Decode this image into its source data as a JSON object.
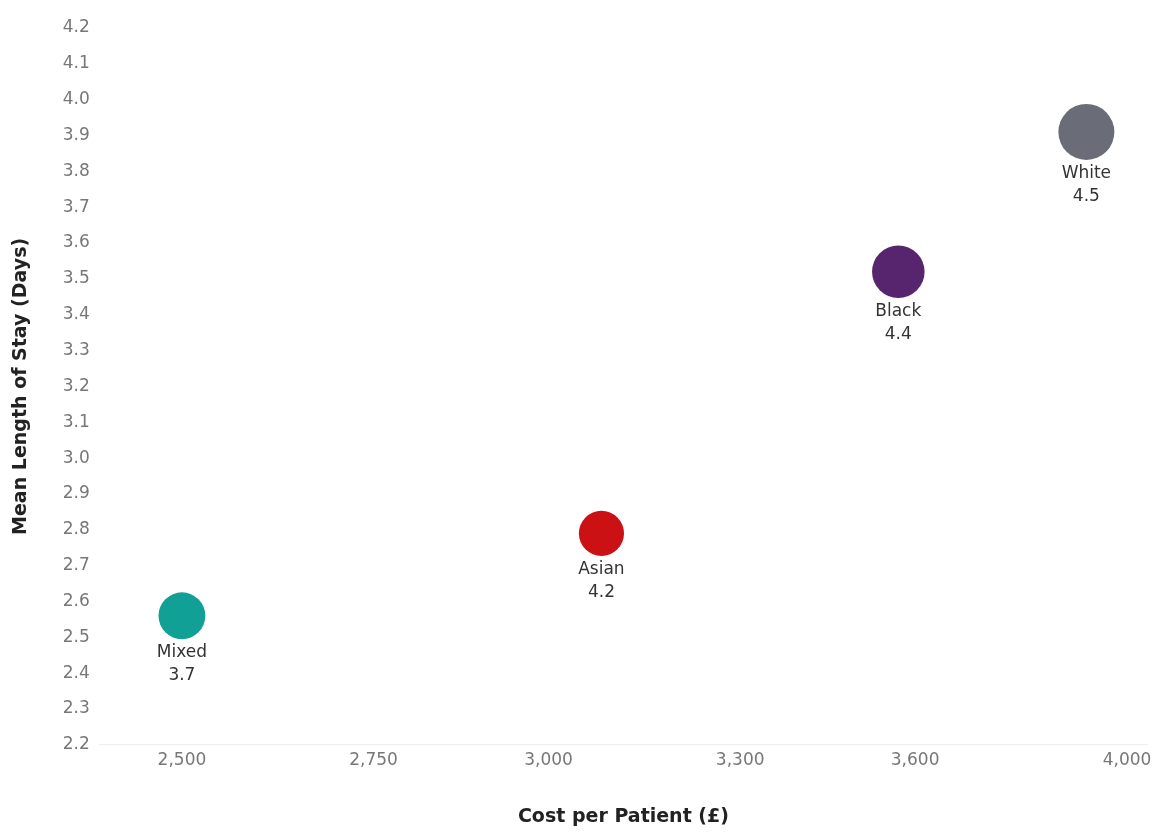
{
  "chart_data": {
    "type": "bubble",
    "xlabel": "Cost per Patient (£)",
    "ylabel": "Mean Length of Stay (Days)",
    "log": "x",
    "xlim": [
      2400,
      4040
    ],
    "xticks": [
      {
        "value": 2500,
        "label": "2,500"
      },
      {
        "value": 2750,
        "label": "2,750"
      },
      {
        "value": 3000,
        "label": "3,000"
      },
      {
        "value": 3300,
        "label": "3,300"
      },
      {
        "value": 3600,
        "label": "3,600"
      },
      {
        "value": 4000,
        "label": "4,000"
      }
    ],
    "ylim": [
      2.2,
      4.2
    ],
    "yticks": [
      2.2,
      2.3,
      2.4,
      2.5,
      2.6,
      2.7,
      2.8,
      2.9,
      {
        "value": 3,
        "label": "3.0"
      },
      3.1,
      3.2,
      3.3,
      3.4,
      3.5,
      3.6,
      3.7,
      3.8,
      3.9,
      {
        "value": 4,
        "label": "4.0"
      },
      4.1,
      4.2
    ],
    "grid": false,
    "legend": false,
    "series": [
      {
        "name": "Mixed",
        "color": "#11a095",
        "x": [
          2500
        ],
        "values": [
          2.56
        ],
        "sizes": [
          0.7
        ]
      },
      {
        "name": "Asian",
        "color": "#cc1115",
        "x": [
          3080
        ],
        "values": [
          2.79
        ],
        "sizes": [
          0.65
        ]
      },
      {
        "name": "Black",
        "color": "#57256e",
        "x": [
          3570
        ],
        "values": [
          3.52
        ],
        "sizes": [
          0.88
        ]
      },
      {
        "name": "White",
        "color": "#6a6c78",
        "x": [
          3920
        ],
        "values": [
          3.91
        ],
        "sizes": [
          1
        ]
      }
    ],
    "annotations": [
      "3.7",
      "4.2",
      "4.4",
      "4.5"
    ]
  }
}
